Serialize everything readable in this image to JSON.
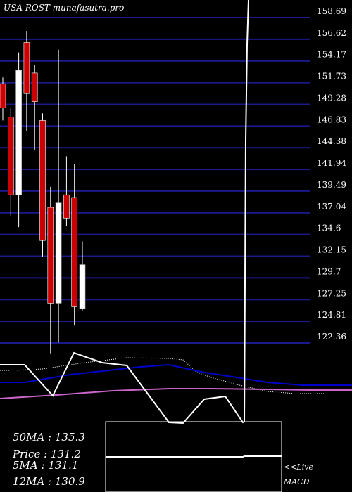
{
  "header": {
    "label": "USA ROST munafasutra.pro"
  },
  "colors": {
    "background": "#000000",
    "grid": "#1a1a8c",
    "bear_candle": "#cc0000",
    "bull_candle": "#ffffff",
    "wick": "#ffffff",
    "ma_long": "#0000cc",
    "ma_short": "#cc66cc",
    "ma_dotted": "#ffffff",
    "text": "#ffffff"
  },
  "chart_data": {
    "type": "candlestick",
    "y_ticks": [
      "158.69",
      "156.62",
      "154.17",
      "151.73",
      "149.28",
      "146.83",
      "144.38",
      "141.94",
      "139.49",
      "137.04",
      "134.6",
      "132.15",
      "129.7",
      "127.25",
      "124.81",
      "122.36"
    ],
    "ylim": [
      121.5,
      159.5
    ],
    "candles": [
      {
        "open": 151.3,
        "close": 148.6,
        "high": 152.0,
        "low": 147.2
      },
      {
        "open": 147.6,
        "close": 138.9,
        "high": 148.6,
        "low": 136.5
      },
      {
        "open": 138.9,
        "close": 152.8,
        "high": 154.8,
        "low": 135.3
      },
      {
        "open": 155.9,
        "close": 150.2,
        "high": 157.2,
        "low": 146.0
      },
      {
        "open": 152.5,
        "close": 149.3,
        "high": 153.4,
        "low": 143.9
      },
      {
        "open": 147.2,
        "close": 133.8,
        "high": 148.0,
        "low": 132.0
      },
      {
        "open": 137.5,
        "close": 126.8,
        "high": 139.8,
        "low": 121.2
      },
      {
        "open": 126.8,
        "close": 138.0,
        "high": 155.1,
        "low": 122.4
      },
      {
        "open": 138.9,
        "close": 136.3,
        "high": 143.2,
        "low": 135.4
      },
      {
        "open": 138.6,
        "close": 126.4,
        "high": 142.3,
        "low": 124.3
      },
      {
        "open": 126.2,
        "close": 131.1,
        "high": 133.7,
        "low": 126.0
      }
    ],
    "ma_lines": {
      "white_dotted": [
        [
          0,
          527
        ],
        [
          20,
          527
        ],
        [
          60,
          525
        ],
        [
          120,
          516
        ],
        [
          180,
          509
        ],
        [
          240,
          510
        ],
        [
          260,
          512
        ],
        [
          280,
          530
        ],
        [
          300,
          537
        ],
        [
          340,
          548
        ],
        [
          380,
          557
        ],
        [
          420,
          560
        ],
        [
          460,
          560
        ]
      ],
      "white_solid": [
        [
          0,
          519
        ],
        [
          35,
          519
        ],
        [
          75,
          563
        ],
        [
          105,
          502
        ],
        [
          145,
          516
        ],
        [
          180,
          520
        ],
        [
          240,
          601
        ],
        [
          260,
          602
        ],
        [
          290,
          568
        ],
        [
          320,
          564
        ],
        [
          345,
          601
        ],
        [
          347,
          600
        ],
        [
          349,
          200
        ],
        [
          351,
          63
        ],
        [
          353,
          0
        ]
      ],
      "blue": [
        [
          0,
          544
        ],
        [
          35,
          544
        ],
        [
          100,
          533
        ],
        [
          200,
          522
        ],
        [
          240,
          519
        ],
        [
          290,
          530
        ],
        [
          330,
          536
        ],
        [
          380,
          544
        ],
        [
          430,
          548
        ],
        [
          500,
          548
        ]
      ],
      "pink": [
        [
          0,
          567
        ],
        [
          80,
          562
        ],
        [
          160,
          556
        ],
        [
          240,
          553
        ],
        [
          300,
          553
        ],
        [
          380,
          554
        ],
        [
          440,
          555
        ],
        [
          500,
          555
        ]
      ]
    },
    "macd_panel": {
      "white_line": [
        [
          150,
          650
        ],
        [
          345,
          650
        ],
        [
          347,
          649
        ],
        [
          400,
          649
        ]
      ]
    }
  },
  "legend": {
    "ma50": "50MA : 135.3",
    "price": "Price   : 131.2",
    "ma5": "5MA : 131.1",
    "ma12": "12MA : 130.9"
  },
  "macd_label": {
    "line1": "<<Live",
    "line2": "MACD"
  }
}
